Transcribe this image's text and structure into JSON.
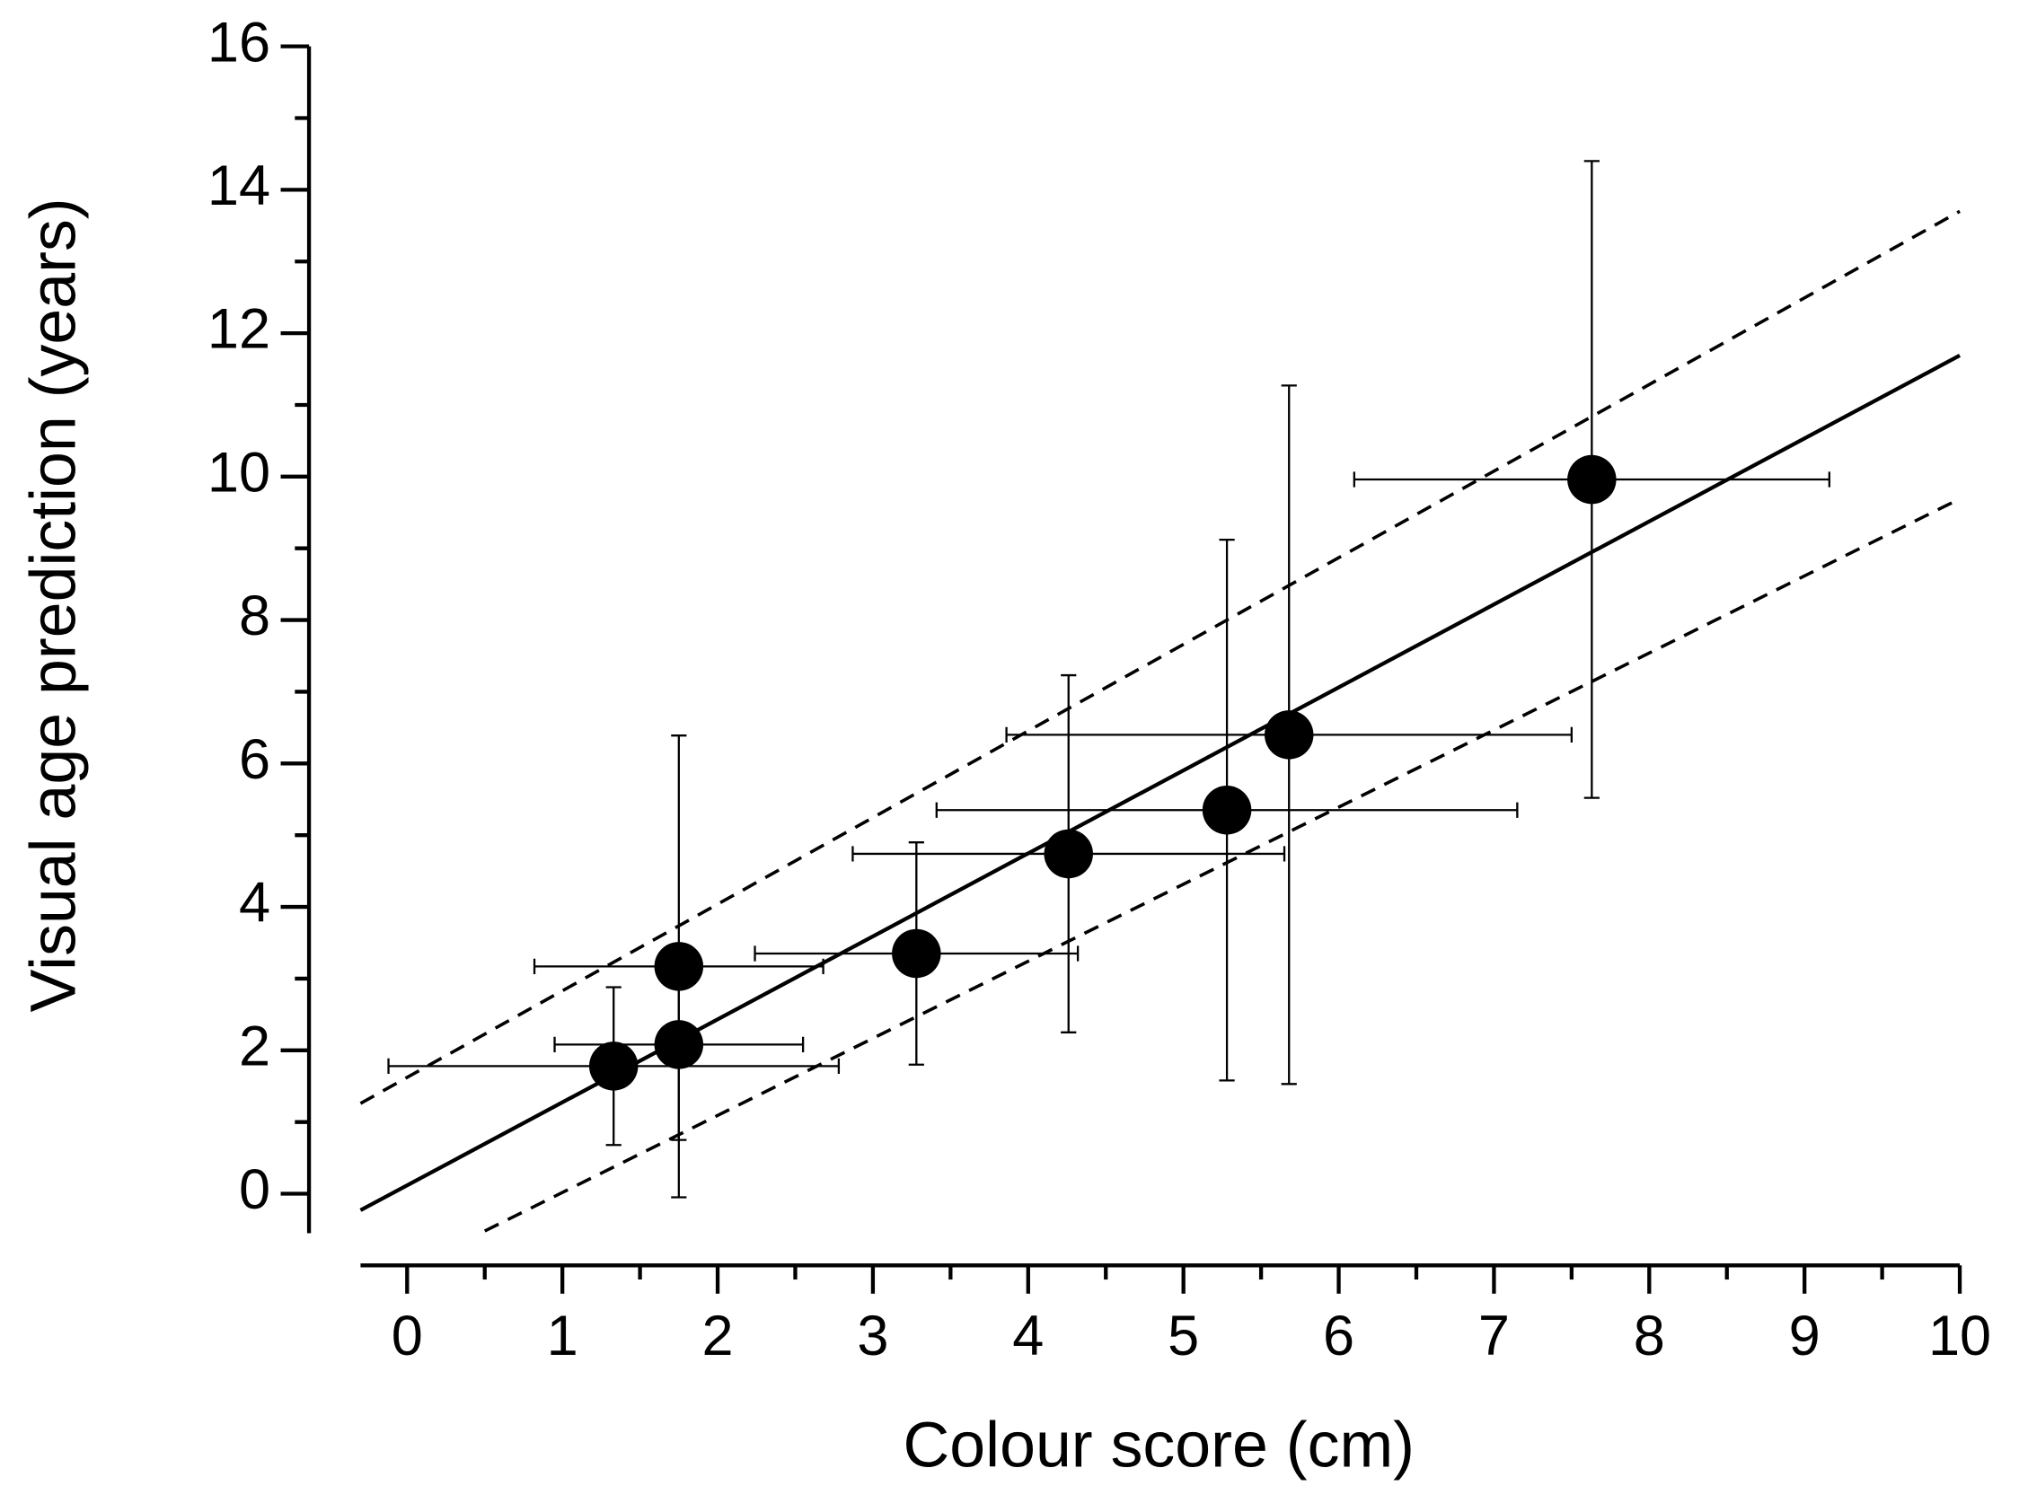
{
  "chart_data": {
    "type": "scatter",
    "x_label": "Colour score (cm)",
    "y_label": "Visual age prediction (years)",
    "xlim": [
      -0.3,
      10
    ],
    "ylim": [
      -0.55,
      16
    ],
    "xticks": [
      0,
      1,
      2,
      3,
      4,
      5,
      6,
      7,
      8,
      9,
      10
    ],
    "yticks": [
      0,
      2,
      4,
      6,
      8,
      10,
      12,
      14,
      16
    ],
    "xminorticks": [
      0.5,
      1.5,
      2.5,
      3.5,
      4.5,
      5.5,
      6.5,
      7.5,
      8.5,
      9.5
    ],
    "yminorticks": [
      1,
      3,
      5,
      7,
      9,
      11,
      13,
      15
    ],
    "grid": false,
    "series": [
      {
        "color": "#000000",
        "x": [
          1.33,
          1.75,
          1.75,
          3.28,
          4.26,
          5.28,
          5.68,
          7.63
        ],
        "values": [
          1.78,
          2.08,
          3.17,
          3.35,
          4.74,
          5.35,
          6.4,
          9.96
        ],
        "xerr": [
          1.45,
          0.8,
          0.93,
          1.04,
          1.39,
          1.87,
          1.82,
          1.53
        ],
        "yerr": [
          1.1,
          1.33,
          3.22,
          1.55,
          2.49,
          3.77,
          4.87,
          4.44
        ]
      }
    ],
    "lines": [
      {
        "style": "solid",
        "color": "#000000",
        "x": [
          -0.3,
          10
        ],
        "values": [
          -0.23,
          11.69
        ]
      },
      {
        "style": "dashed",
        "color": "#000000",
        "x": [
          -0.3,
          10
        ],
        "values": [
          1.26,
          13.7
        ]
      },
      {
        "style": "dashed",
        "color": "#000000",
        "x": [
          0.5,
          10
        ],
        "values": [
          -0.52,
          9.69
        ]
      }
    ]
  }
}
